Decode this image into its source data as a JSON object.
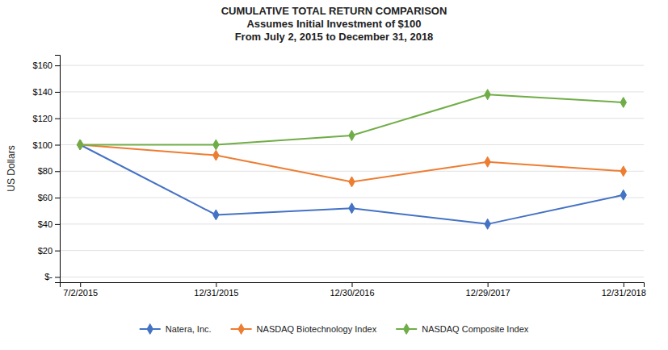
{
  "chart_data": {
    "type": "line",
    "title": [
      "CUMULATIVE TOTAL RETURN COMPARISON",
      "Assumes Initial Investment of $100",
      "From July 2, 2015 to December 31, 2018"
    ],
    "y_label": "US Dollars",
    "categories": [
      "7/2/2015",
      "12/31/2015",
      "12/30/2016",
      "12/29/2017",
      "12/31/2018"
    ],
    "series": [
      {
        "name": "Natera, Inc.",
        "values": [
          100,
          47,
          52,
          40,
          62
        ],
        "color": "#4472C4",
        "marker": "diamond"
      },
      {
        "name": "NASDAQ Biotechnology Index",
        "values": [
          100,
          92,
          72,
          87,
          80
        ],
        "color": "#ED7D31",
        "marker": "diamond"
      },
      {
        "name": "NASDAQ Composite Index",
        "values": [
          100,
          100,
          107,
          138,
          132
        ],
        "color": "#70AD47",
        "marker": "diamond"
      }
    ],
    "ylim": [
      -4,
      168
    ],
    "yticks": [
      {
        "value": 0,
        "label": "$-"
      },
      {
        "value": 20,
        "label": "$20"
      },
      {
        "value": 40,
        "label": "$40"
      },
      {
        "value": 60,
        "label": "$60"
      },
      {
        "value": 80,
        "label": "$80"
      },
      {
        "value": 100,
        "label": "$100"
      },
      {
        "value": 120,
        "label": "$120"
      },
      {
        "value": 140,
        "label": "$140"
      },
      {
        "value": 160,
        "label": "$160"
      }
    ],
    "grid": true,
    "legend": "bottom"
  }
}
